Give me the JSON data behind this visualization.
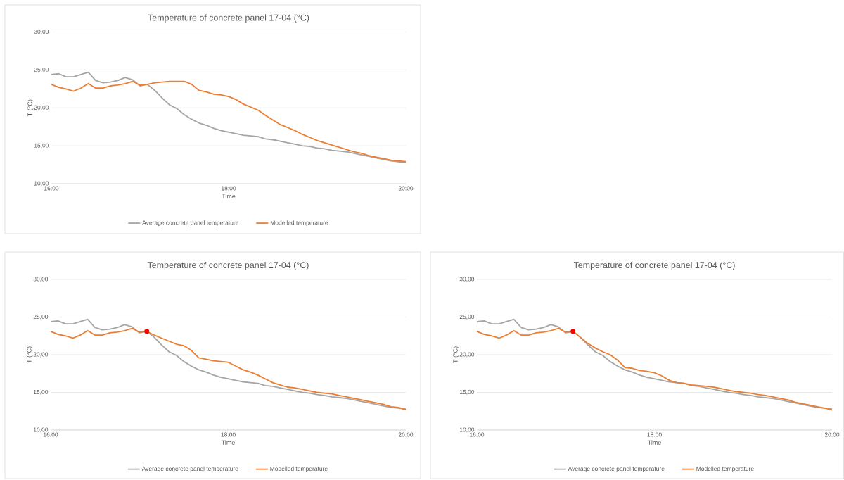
{
  "chart_data": [
    {
      "type": "line",
      "title": "Temperature of concrete panel 17-04 (°C)",
      "xlabel": "Time",
      "ylabel": "T (°C)",
      "x": [
        16,
        16.083,
        16.167,
        16.25,
        16.333,
        16.417,
        16.5,
        16.583,
        16.667,
        16.75,
        16.833,
        16.917,
        17,
        17.083,
        17.167,
        17.25,
        17.333,
        17.417,
        17.5,
        17.583,
        17.667,
        17.75,
        17.833,
        17.917,
        18,
        18.083,
        18.167,
        18.25,
        18.333,
        18.417,
        18.5,
        18.583,
        18.667,
        18.75,
        18.833,
        18.917,
        19,
        19.083,
        19.167,
        19.25,
        19.333,
        19.417,
        19.5,
        19.583,
        19.667,
        19.75,
        19.833,
        19.917,
        20
      ],
      "series": [
        {
          "name": "Average concrete panel temperature",
          "color": "#a5a5a5",
          "values": [
            24.4,
            24.5,
            24.1,
            24.1,
            24.4,
            24.7,
            23.6,
            23.3,
            23.4,
            23.6,
            24.0,
            23.7,
            22.9,
            23.1,
            22.3,
            21.3,
            20.4,
            19.9,
            19.1,
            18.5,
            18.0,
            17.7,
            17.3,
            17.0,
            16.8,
            16.6,
            16.4,
            16.3,
            16.2,
            15.9,
            15.8,
            15.6,
            15.4,
            15.2,
            15.0,
            14.9,
            14.7,
            14.6,
            14.4,
            14.3,
            14.2,
            14.0,
            13.8,
            13.6,
            13.4,
            13.2,
            13.0,
            12.9,
            12.8
          ]
        },
        {
          "name": "Modelled temperature",
          "color": "#ed7d31",
          "values": [
            23.1,
            22.7,
            22.5,
            22.2,
            22.6,
            23.2,
            22.6,
            22.6,
            22.9,
            23.0,
            23.2,
            23.5,
            23.0,
            23.1,
            23.3,
            23.4,
            23.5,
            23.5,
            23.5,
            23.1,
            22.3,
            22.1,
            21.8,
            21.7,
            21.5,
            21.1,
            20.5,
            20.1,
            19.7,
            19.0,
            18.4,
            17.8,
            17.4,
            17.0,
            16.5,
            16.1,
            15.7,
            15.4,
            15.1,
            14.8,
            14.5,
            14.2,
            14.0,
            13.7,
            13.5,
            13.3,
            13.1,
            13.0,
            12.9
          ]
        }
      ],
      "xlim": [
        16,
        20
      ],
      "xticks": [
        {
          "value": 16,
          "label": "16:00"
        },
        {
          "value": 18,
          "label": "18:00"
        },
        {
          "value": 20,
          "label": "20:00"
        }
      ],
      "ylim": [
        10,
        30
      ],
      "yticks": [
        {
          "value": 10,
          "label": "10,00"
        },
        {
          "value": 15,
          "label": "15,00"
        },
        {
          "value": 20,
          "label": "20,00"
        },
        {
          "value": 25,
          "label": "25,00"
        },
        {
          "value": 30,
          "label": "30,00"
        }
      ],
      "grid": "y",
      "legend": "bottom",
      "line_style": "solid"
    },
    {
      "type": "line",
      "title": "Temperature of concrete panel 17-04 (°C)",
      "xlabel": "Time",
      "ylabel": "T (°C)",
      "x": [
        16,
        16.083,
        16.167,
        16.25,
        16.333,
        16.417,
        16.5,
        16.583,
        16.667,
        16.75,
        16.833,
        16.917,
        17,
        17.083,
        17.167,
        17.25,
        17.333,
        17.417,
        17.5,
        17.583,
        17.667,
        17.75,
        17.833,
        17.917,
        18,
        18.083,
        18.167,
        18.25,
        18.333,
        18.417,
        18.5,
        18.583,
        18.667,
        18.75,
        18.833,
        18.917,
        19,
        19.083,
        19.167,
        19.25,
        19.333,
        19.417,
        19.5,
        19.583,
        19.667,
        19.75,
        19.833,
        19.917,
        20
      ],
      "series": [
        {
          "name": "Average concrete panel temperature",
          "color": "#a5a5a5",
          "values": [
            24.4,
            24.5,
            24.1,
            24.1,
            24.4,
            24.7,
            23.6,
            23.3,
            23.4,
            23.6,
            24.0,
            23.7,
            22.9,
            23.1,
            22.3,
            21.3,
            20.4,
            19.9,
            19.1,
            18.5,
            18.0,
            17.7,
            17.3,
            17.0,
            16.8,
            16.6,
            16.4,
            16.3,
            16.2,
            15.9,
            15.8,
            15.6,
            15.4,
            15.2,
            15.0,
            14.9,
            14.7,
            14.6,
            14.4,
            14.3,
            14.2,
            14.0,
            13.8,
            13.6,
            13.4,
            13.2,
            13.0,
            12.9,
            12.8
          ]
        },
        {
          "name": "Modelled temperature",
          "color": "#ed7d31",
          "values": [
            23.1,
            22.7,
            22.5,
            22.2,
            22.6,
            23.2,
            22.6,
            22.6,
            22.9,
            23.0,
            23.2,
            23.5,
            23.0,
            23.1,
            22.6,
            22.2,
            21.8,
            21.4,
            21.2,
            20.6,
            19.6,
            19.4,
            19.2,
            19.1,
            19.0,
            18.5,
            18.0,
            17.7,
            17.3,
            16.8,
            16.3,
            16.0,
            15.7,
            15.6,
            15.4,
            15.2,
            15.0,
            14.9,
            14.8,
            14.6,
            14.4,
            14.2,
            14.0,
            13.8,
            13.6,
            13.4,
            13.1,
            13.0,
            12.7
          ]
        },
        {
          "type": "scatter",
          "color": "#ff0000",
          "marker": "circle",
          "x": [
            17.083
          ],
          "values": [
            23.1
          ]
        }
      ],
      "xlim": [
        16,
        20
      ],
      "xticks": [
        {
          "value": 16,
          "label": "16:00"
        },
        {
          "value": 18,
          "label": "18:00"
        },
        {
          "value": 20,
          "label": "20:00"
        }
      ],
      "ylim": [
        10,
        30
      ],
      "yticks": [
        {
          "value": 10,
          "label": "10,00"
        },
        {
          "value": 15,
          "label": "15,00"
        },
        {
          "value": 20,
          "label": "20,00"
        },
        {
          "value": 25,
          "label": "25,00"
        },
        {
          "value": 30,
          "label": "30,00"
        }
      ],
      "grid": "y",
      "legend": "bottom",
      "line_style": "solid"
    },
    {
      "type": "line",
      "title": "Temperature of concrete panel 17-04 (°C)",
      "xlabel": "Time",
      "ylabel": "T (°C)",
      "x": [
        16,
        16.083,
        16.167,
        16.25,
        16.333,
        16.417,
        16.5,
        16.583,
        16.667,
        16.75,
        16.833,
        16.917,
        17,
        17.083,
        17.167,
        17.25,
        17.333,
        17.417,
        17.5,
        17.583,
        17.667,
        17.75,
        17.833,
        17.917,
        18,
        18.083,
        18.167,
        18.25,
        18.333,
        18.417,
        18.5,
        18.583,
        18.667,
        18.75,
        18.833,
        18.917,
        19,
        19.083,
        19.167,
        19.25,
        19.333,
        19.417,
        19.5,
        19.583,
        19.667,
        19.75,
        19.833,
        19.917,
        20
      ],
      "series": [
        {
          "name": "Average concrete panel temperature",
          "color": "#a5a5a5",
          "values": [
            24.4,
            24.5,
            24.1,
            24.1,
            24.4,
            24.7,
            23.6,
            23.3,
            23.4,
            23.6,
            24.0,
            23.7,
            22.9,
            23.1,
            22.3,
            21.3,
            20.4,
            19.9,
            19.1,
            18.5,
            18.0,
            17.7,
            17.3,
            17.0,
            16.8,
            16.6,
            16.4,
            16.3,
            16.2,
            15.9,
            15.8,
            15.6,
            15.4,
            15.2,
            15.0,
            14.9,
            14.7,
            14.6,
            14.4,
            14.3,
            14.2,
            14.0,
            13.8,
            13.6,
            13.4,
            13.2,
            13.0,
            12.9,
            12.8
          ]
        },
        {
          "name": "Modelled temperature",
          "color": "#ed7d31",
          "values": [
            23.1,
            22.7,
            22.5,
            22.2,
            22.6,
            23.2,
            22.6,
            22.6,
            22.9,
            23.0,
            23.2,
            23.5,
            23.0,
            23.1,
            22.3,
            21.5,
            20.9,
            20.4,
            20.0,
            19.3,
            18.3,
            18.2,
            17.9,
            17.8,
            17.6,
            17.2,
            16.6,
            16.3,
            16.2,
            16.0,
            15.9,
            15.8,
            15.7,
            15.5,
            15.3,
            15.1,
            15.0,
            14.9,
            14.7,
            14.6,
            14.4,
            14.2,
            14.0,
            13.7,
            13.5,
            13.3,
            13.1,
            12.9,
            12.7
          ]
        },
        {
          "type": "scatter",
          "color": "#ff0000",
          "marker": "circle",
          "x": [
            17.083
          ],
          "values": [
            23.1
          ]
        }
      ],
      "xlim": [
        16,
        20
      ],
      "xticks": [
        {
          "value": 16,
          "label": "16:00"
        },
        {
          "value": 18,
          "label": "18:00"
        },
        {
          "value": 20,
          "label": "20:00"
        }
      ],
      "ylim": [
        10,
        30
      ],
      "yticks": [
        {
          "value": 10,
          "label": "10,00"
        },
        {
          "value": 15,
          "label": "15,00"
        },
        {
          "value": 20,
          "label": "20,00"
        },
        {
          "value": 25,
          "label": "25,00"
        },
        {
          "value": 30,
          "label": "30,00"
        }
      ],
      "grid": "y",
      "legend": "bottom",
      "line_style": "solid"
    }
  ]
}
